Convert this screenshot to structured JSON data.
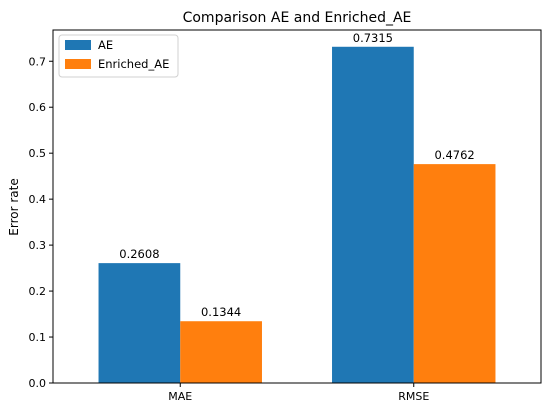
{
  "chart_data": {
    "type": "bar",
    "title": "Comparison AE and Enriched_AE",
    "xlabel": "",
    "ylabel": "Error rate",
    "categories": [
      "MAE",
      "RMSE"
    ],
    "series": [
      {
        "name": "AE",
        "values": [
          0.2608,
          0.7315
        ],
        "color": "#1f77b4"
      },
      {
        "name": "Enriched_AE",
        "values": [
          0.1344,
          0.4762
        ],
        "color": "#ff7f0e"
      }
    ],
    "data_labels": [
      [
        "0.2608",
        "0.7315"
      ],
      [
        "0.1344",
        "0.4762"
      ]
    ],
    "ylim": [
      0,
      0.768
    ],
    "yticks": [
      0.0,
      0.1,
      0.2,
      0.3,
      0.4,
      0.5,
      0.6,
      0.7
    ],
    "ytick_labels": [
      "0.0",
      "0.1",
      "0.2",
      "0.3",
      "0.4",
      "0.5",
      "0.6",
      "0.7"
    ],
    "grid": false,
    "legend_position": "top-left"
  }
}
